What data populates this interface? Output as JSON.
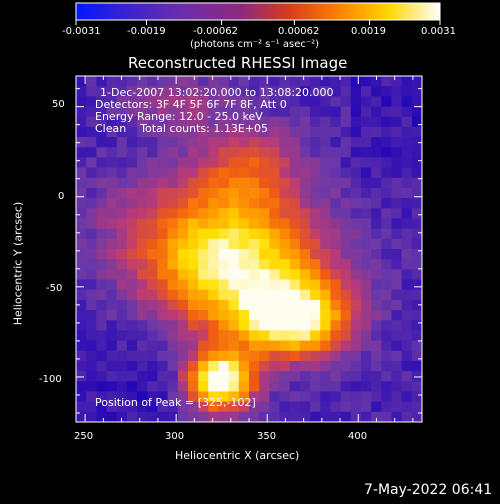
{
  "chart_data": {
    "type": "heatmap",
    "title": "Reconstructed RHESSI Image",
    "xlabel": "Heliocentric X (arcsec)",
    "ylabel": "Heliocentric Y (arcsec)",
    "xlim": [
      245,
      435
    ],
    "ylim": [
      -125,
      67
    ],
    "x_ticks": [
      250,
      300,
      350,
      400
    ],
    "x_tick_labels": [
      "250",
      "300",
      "350",
      "400"
    ],
    "y_ticks": [
      50,
      0,
      -50,
      -100
    ],
    "y_tick_labels": [
      "50",
      "0",
      "-50",
      "-100"
    ],
    "colorbar": {
      "range": [
        -0.0031,
        0.0031
      ],
      "ticks": [
        -0.0031,
        -0.0019,
        -0.00062,
        0.00062,
        0.0019,
        0.0031
      ],
      "tick_labels": [
        "-0.0031",
        "-0.0019",
        "-0.00062",
        "0.00062",
        "0.0019",
        "0.0031"
      ],
      "label": "(photons cm⁻² s⁻¹ asec⁻²)"
    },
    "annotations": [
      "1-Dec-2007 13:02:20.000 to 13:08:20.000",
      "Detectors: 3F 4F 5F 6F 7F 8F, Att 0",
      "Energy Range: 12.0 - 25.0 keV",
      "Clean    Total counts: 1.13E+05",
      "Position of Peak = [325,-102]"
    ],
    "sources": [
      {
        "x": 325,
        "y": -102,
        "amplitude": 1.0,
        "sigma_x": 12,
        "sigma_y": 11
      },
      {
        "x": 365,
        "y": -68,
        "amplitude": 0.82,
        "sigma_x": 20,
        "sigma_y": 14
      },
      {
        "x": 338,
        "y": -45,
        "amplitude": 0.55,
        "sigma_x": 32,
        "sigma_y": 24
      },
      {
        "x": 315,
        "y": -25,
        "amplitude": 0.45,
        "sigma_x": 36,
        "sigma_y": 25
      },
      {
        "x": 340,
        "y": 15,
        "amplitude": 0.3,
        "sigma_x": 20,
        "sigma_y": 18
      },
      {
        "x": 300,
        "y": 52,
        "amplitude": 0.18,
        "sigma_x": 20,
        "sigma_y": 10
      }
    ]
  },
  "footer": {
    "timestamp": "7-May-2022 06:41"
  },
  "colors": {
    "background": "#000000",
    "text": "#ffffff",
    "colormap": [
      "#1a00b8",
      "#6a38a8",
      "#b63a7a",
      "#f05a14",
      "#ff9d00",
      "#ffe000",
      "#fffdf0"
    ]
  }
}
